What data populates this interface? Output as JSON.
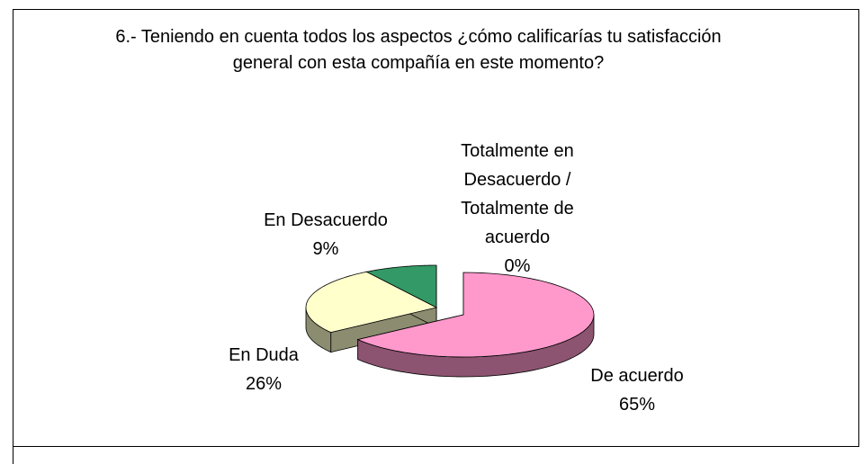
{
  "chart_data": {
    "type": "pie3d",
    "title": "6.- Teniendo en cuenta todos los aspectos ¿cómo calificarías tu satisfacción general con esta compañía en este momento?",
    "categories": [
      "De acuerdo",
      "En Duda",
      "En Desacuerdo",
      "Totalmente en Desacuerdo / Totalmente de acuerdo"
    ],
    "values": [
      65,
      26,
      9,
      0
    ],
    "value_labels": [
      "65%",
      "26%",
      "9%",
      "0%"
    ],
    "colors": [
      "#ff99cc",
      "#ffffcc",
      "#339966",
      "#cccccc"
    ]
  }
}
